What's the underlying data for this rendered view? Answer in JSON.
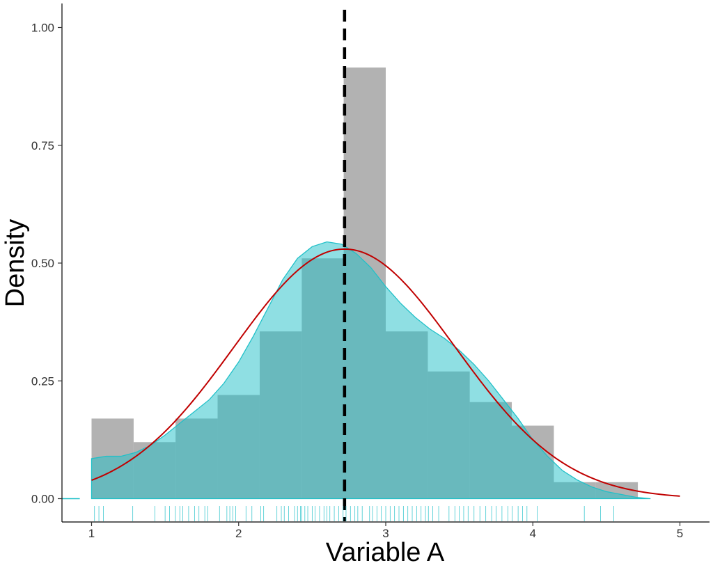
{
  "chart_data": {
    "type": "histogram",
    "xlabel": "Variable A",
    "ylabel": "Density",
    "xlim": [
      0.8,
      5.2
    ],
    "ylim": [
      -0.05,
      1.05
    ],
    "x_ticks": [
      1,
      2,
      3,
      4,
      5
    ],
    "y_ticks": [
      0.0,
      0.25,
      0.5,
      0.75,
      1.0
    ],
    "y_tick_labels": [
      "0.00",
      "0.25",
      "0.50",
      "0.75",
      "1.00"
    ],
    "grid": false,
    "histogram": {
      "color": "#b2b2b2",
      "bins": [
        {
          "x0": 1.0,
          "x1": 1.286,
          "density": 0.17
        },
        {
          "x0": 1.286,
          "x1": 1.571,
          "density": 0.12
        },
        {
          "x0": 1.571,
          "x1": 1.857,
          "density": 0.17
        },
        {
          "x0": 1.857,
          "x1": 2.143,
          "density": 0.22
        },
        {
          "x0": 2.143,
          "x1": 2.429,
          "density": 0.355
        },
        {
          "x0": 2.429,
          "x1": 2.714,
          "density": 0.51
        },
        {
          "x0": 2.714,
          "x1": 3.0,
          "density": 0.915
        },
        {
          "x0": 3.0,
          "x1": 3.286,
          "density": 0.355
        },
        {
          "x0": 3.286,
          "x1": 3.571,
          "density": 0.27
        },
        {
          "x0": 3.571,
          "x1": 3.857,
          "density": 0.205
        },
        {
          "x0": 3.857,
          "x1": 4.143,
          "density": 0.155
        },
        {
          "x0": 4.143,
          "x1": 4.429,
          "density": 0.035
        },
        {
          "x0": 4.429,
          "x1": 4.714,
          "density": 0.035
        }
      ]
    },
    "kde": {
      "color": "#20c0c8",
      "points": [
        [
          1.0,
          0.085
        ],
        [
          1.1,
          0.09
        ],
        [
          1.2,
          0.09
        ],
        [
          1.3,
          0.098
        ],
        [
          1.4,
          0.113
        ],
        [
          1.5,
          0.135
        ],
        [
          1.6,
          0.16
        ],
        [
          1.7,
          0.185
        ],
        [
          1.8,
          0.21
        ],
        [
          1.9,
          0.245
        ],
        [
          2.0,
          0.29
        ],
        [
          2.1,
          0.345
        ],
        [
          2.2,
          0.405
        ],
        [
          2.3,
          0.465
        ],
        [
          2.4,
          0.51
        ],
        [
          2.5,
          0.535
        ],
        [
          2.6,
          0.545
        ],
        [
          2.7,
          0.54
        ],
        [
          2.8,
          0.52
        ],
        [
          2.9,
          0.49
        ],
        [
          3.0,
          0.45
        ],
        [
          3.1,
          0.415
        ],
        [
          3.2,
          0.385
        ],
        [
          3.3,
          0.36
        ],
        [
          3.4,
          0.34
        ],
        [
          3.5,
          0.315
        ],
        [
          3.6,
          0.285
        ],
        [
          3.7,
          0.25
        ],
        [
          3.8,
          0.21
        ],
        [
          3.9,
          0.17
        ],
        [
          4.0,
          0.125
        ],
        [
          4.1,
          0.09
        ],
        [
          4.2,
          0.06
        ],
        [
          4.3,
          0.04
        ],
        [
          4.4,
          0.025
        ],
        [
          4.5,
          0.015
        ],
        [
          4.6,
          0.009
        ],
        [
          4.7,
          0.003
        ],
        [
          4.8,
          0.0
        ]
      ]
    },
    "normal_curve": {
      "color": "#c00000",
      "mean": 2.72,
      "sd": 0.753,
      "x_range": [
        1.0,
        5.0
      ]
    },
    "mean_line": {
      "x": 2.72,
      "color": "#000000",
      "style": "dashed"
    },
    "rug": {
      "color": "#20c0c8",
      "values": [
        1.02,
        1.05,
        1.08,
        1.28,
        1.43,
        1.5,
        1.53,
        1.57,
        1.6,
        1.62,
        1.66,
        1.7,
        1.73,
        1.77,
        1.79,
        1.87,
        1.92,
        1.94,
        1.96,
        1.98,
        2.05,
        2.09,
        2.15,
        2.17,
        2.26,
        2.29,
        2.31,
        2.34,
        2.38,
        2.4,
        2.42,
        2.43,
        2.45,
        2.47,
        2.5,
        2.52,
        2.55,
        2.58,
        2.6,
        2.62,
        2.65,
        2.68,
        2.71,
        2.73,
        2.76,
        2.79,
        2.81,
        2.84,
        2.89,
        2.91,
        2.94,
        2.97,
        3.0,
        3.03,
        3.06,
        3.09,
        3.12,
        3.15,
        3.18,
        3.21,
        3.24,
        3.27,
        3.29,
        3.32,
        3.36,
        3.43,
        3.47,
        3.5,
        3.53,
        3.56,
        3.6,
        3.64,
        3.68,
        3.72,
        3.75,
        3.79,
        3.83,
        3.86,
        3.9,
        3.93,
        3.96,
        4.03,
        4.35,
        4.46,
        4.55
      ]
    }
  }
}
